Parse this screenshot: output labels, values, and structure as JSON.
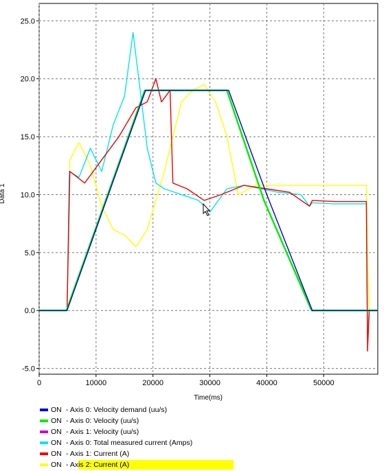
{
  "chart_data": {
    "type": "line",
    "title": "",
    "xlabel": "Time(ms)",
    "ylabel": "Data 1",
    "xlim": [
      0,
      59500
    ],
    "ylim": [
      -5.5,
      26.5
    ],
    "grid": true,
    "legend_position": "bottom-left",
    "x_ticks": [
      0,
      10000,
      20000,
      30000,
      40000,
      50000
    ],
    "y_ticks": [
      -5.0,
      0.0,
      5.0,
      10.0,
      15.0,
      20.0,
      25.0
    ],
    "x_tick_labels": [
      "0",
      "10000",
      "20000",
      "30000",
      "40000",
      "50000"
    ],
    "y_tick_labels": [
      "-5.0",
      "0.0",
      "5.0",
      "10.0",
      "15.0",
      "20.0",
      "25.0"
    ],
    "series": [
      {
        "name": "Axis 0: Velocity demand (uu/s)",
        "state": "ON",
        "color": "#0000cc",
        "x": [
          0,
          4900,
          18700,
          33300,
          37000,
          40000,
          48000,
          59500
        ],
        "y": [
          0,
          0,
          19.0,
          19.0,
          14.0,
          10.0,
          0,
          0
        ]
      },
      {
        "name": "Axis 0: Velocity (uu/s)",
        "state": "ON",
        "color": "#00ee00",
        "x": [
          0,
          4800,
          18600,
          33000,
          39500,
          47900,
          48500,
          59500
        ],
        "y": [
          0,
          0,
          19.0,
          19.0,
          9.5,
          0,
          0,
          0
        ]
      },
      {
        "name": "Axis 1: Velocity (uu/s)",
        "state": "ON",
        "color": "#cc00cc",
        "x": [
          0,
          4800,
          18500,
          33000,
          39500,
          47800,
          48500,
          59500
        ],
        "y": [
          0,
          0,
          19.0,
          19.0,
          9.5,
          0,
          0,
          0
        ]
      },
      {
        "name": "Axis 0: Total measured current (Amps)",
        "state": "ON",
        "color": "#00e5ee",
        "x": [
          0,
          4900,
          5300,
          7000,
          9000,
          11000,
          13000,
          15000,
          16500,
          17500,
          19000,
          20500,
          22000,
          25000,
          28000,
          30000,
          33000,
          36000,
          39000,
          42000,
          46000,
          47500,
          48000,
          52000,
          57500,
          57700,
          58000,
          59500
        ],
        "y": [
          0,
          0,
          12.0,
          11.5,
          14.0,
          12.0,
          16.0,
          18.5,
          24.0,
          20.0,
          14.0,
          11.0,
          10.5,
          10.0,
          9.5,
          8.5,
          10.5,
          10.8,
          10.5,
          10.2,
          10.0,
          9.0,
          9.3,
          9.2,
          9.2,
          -2.0,
          0,
          0
        ]
      },
      {
        "name": "Axis 1: Current (A)",
        "state": "ON",
        "color": "#ee0000",
        "x": [
          0,
          4900,
          5400,
          8000,
          11000,
          14000,
          17000,
          19000,
          20500,
          21500,
          23000,
          23500,
          26000,
          29000,
          32000,
          36000,
          40000,
          44000,
          47500,
          48000,
          52000,
          57500,
          57700,
          58000,
          59500
        ],
        "y": [
          0,
          0,
          12.0,
          11.0,
          13.0,
          15.0,
          17.5,
          18.0,
          20.0,
          18.0,
          19.0,
          11.0,
          10.5,
          9.5,
          10.0,
          10.8,
          10.5,
          10.2,
          9.0,
          9.5,
          9.4,
          9.4,
          -3.5,
          0,
          0
        ]
      },
      {
        "name": "Axis 2: Current (A)",
        "state": "ON",
        "color": "#ffff00",
        "x": [
          0,
          4900,
          5400,
          7000,
          9000,
          11000,
          13000,
          15000,
          17000,
          19000,
          22000,
          25000,
          27000,
          29000,
          31000,
          33000,
          35000,
          38000,
          42000,
          45000,
          48000,
          52000,
          56000,
          57500,
          57700,
          58000,
          59500
        ],
        "y": [
          0,
          0,
          13.0,
          14.5,
          12.5,
          9.0,
          7.0,
          6.5,
          5.5,
          7.0,
          12.0,
          18.0,
          19.0,
          19.5,
          18.0,
          15.0,
          10.0,
          10.8,
          10.8,
          10.8,
          10.8,
          10.8,
          10.8,
          10.8,
          4.0,
          0,
          0
        ]
      }
    ]
  }
}
